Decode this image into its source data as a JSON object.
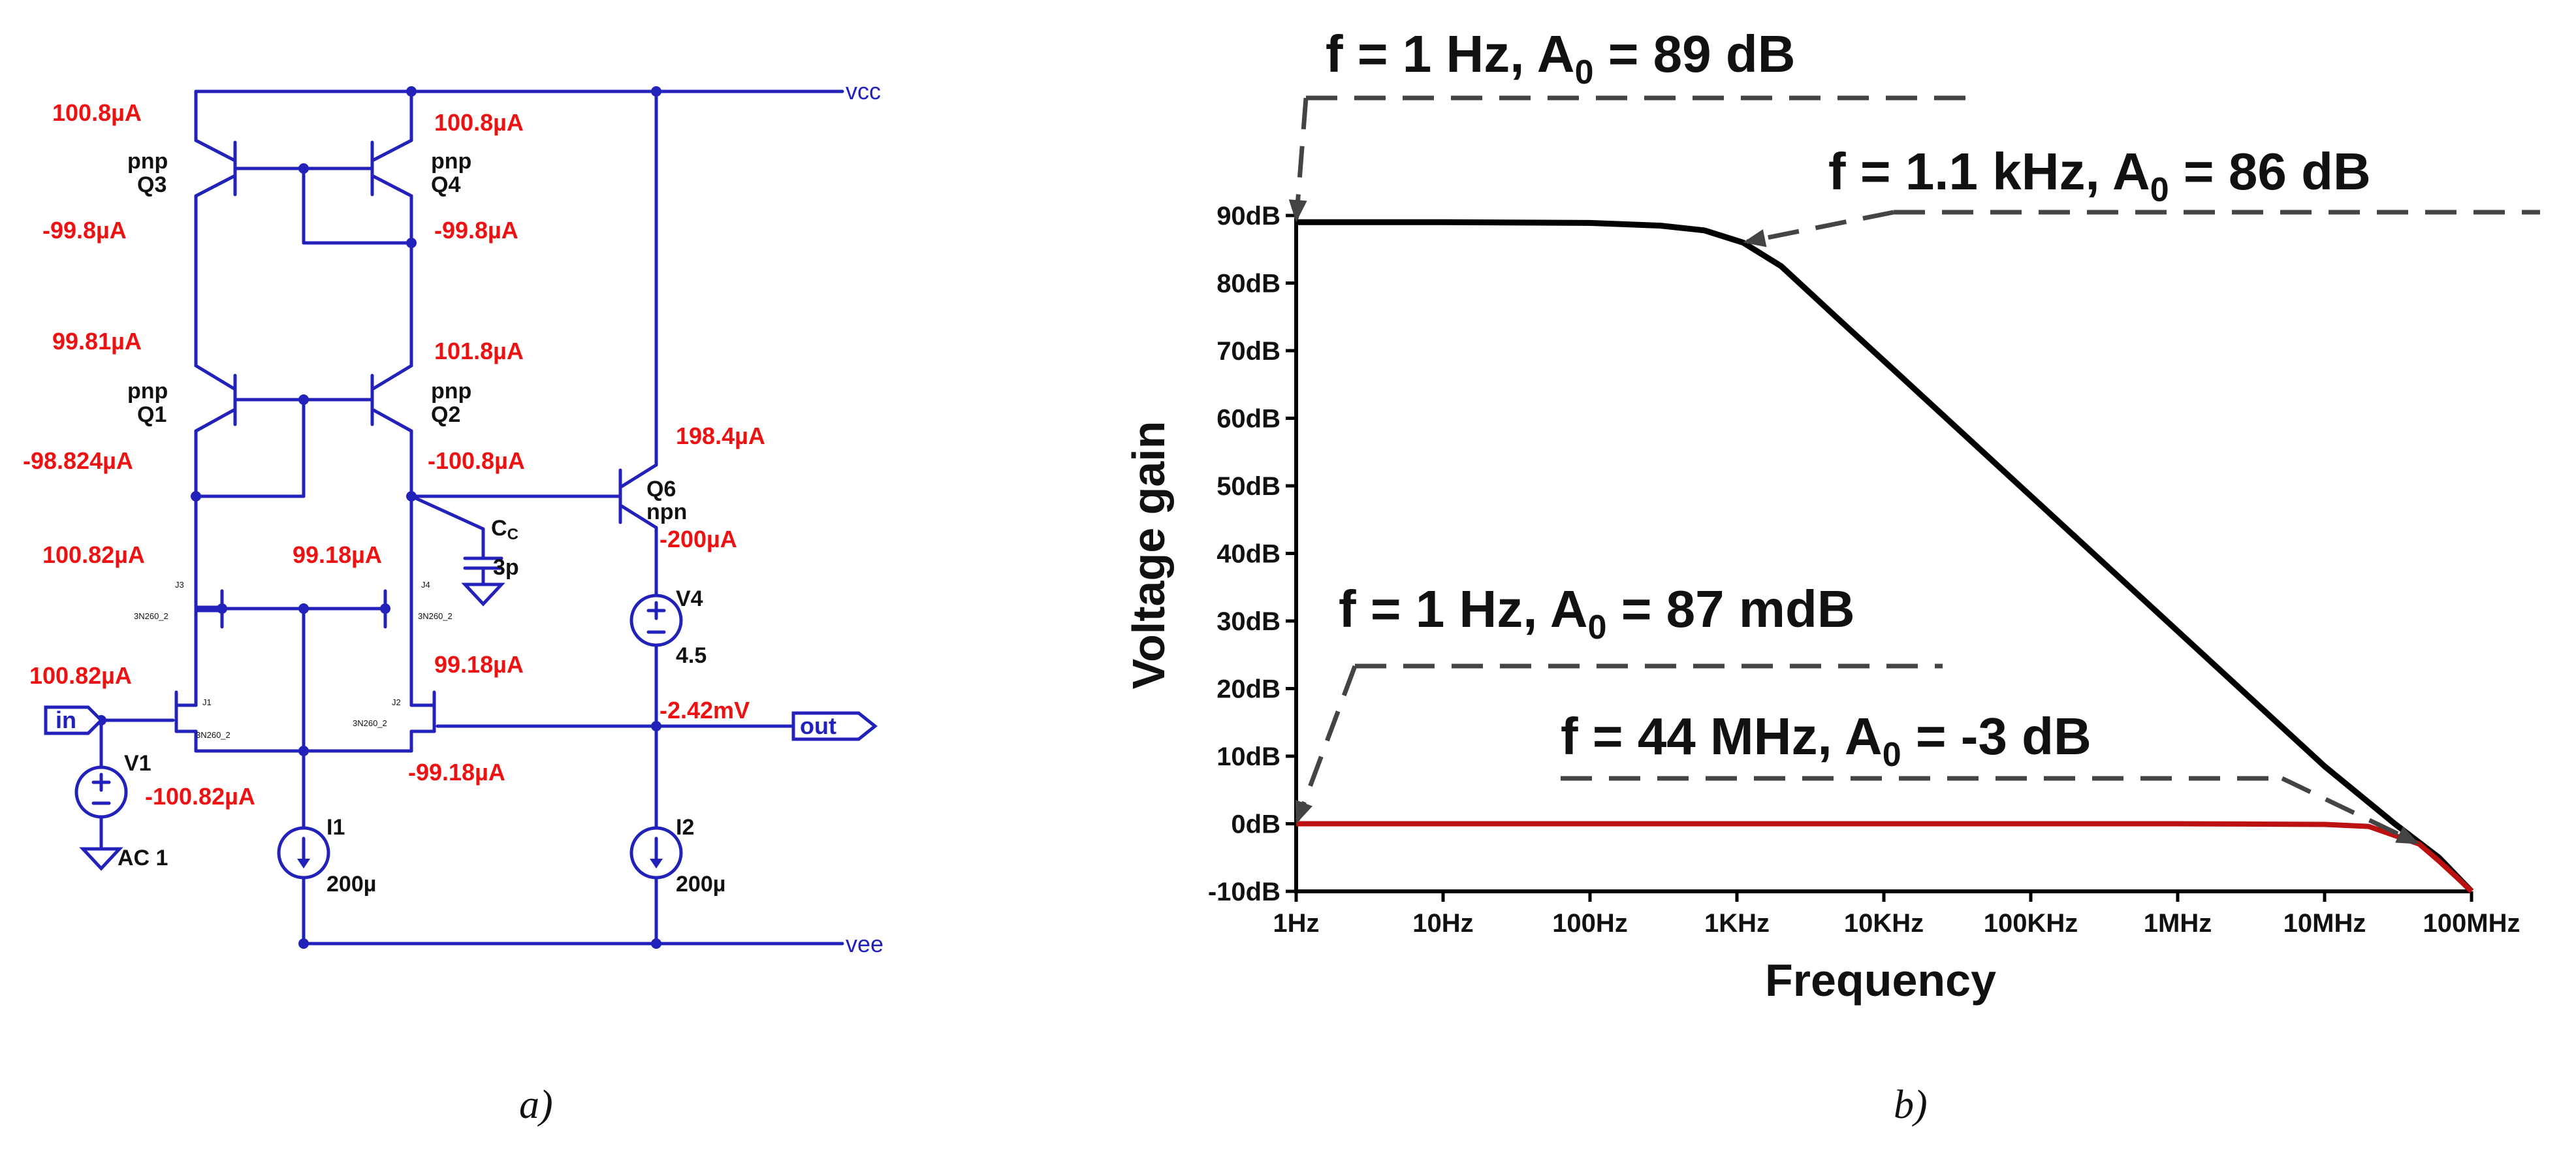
{
  "panels": [
    {
      "caption": "a)"
    },
    {
      "caption": "b)"
    }
  ],
  "schematic": {
    "nets": {
      "vcc": "vcc",
      "vee": "vee"
    },
    "ports": {
      "in": "in",
      "out": "out"
    },
    "devices": [
      {
        "name": "Q3",
        "type": "pnp"
      },
      {
        "name": "Q4",
        "type": "pnp"
      },
      {
        "name": "Q1",
        "type": "pnp"
      },
      {
        "name": "Q2",
        "type": "pnp"
      },
      {
        "name": "Q6",
        "type": "npn"
      },
      {
        "name": "J3",
        "model": "3N260_2"
      },
      {
        "name": "J4",
        "model": "3N260_2"
      },
      {
        "name": "J1",
        "model": "3N260_2"
      },
      {
        "name": "J2",
        "model": "3N260_2"
      }
    ],
    "capacitor": {
      "name": "CC",
      "name_main": "C",
      "name_sub": "C",
      "value": "3p"
    },
    "sources": [
      {
        "name": "V1",
        "value": "AC 1"
      },
      {
        "name": "V4",
        "value": "4.5"
      },
      {
        "name": "I1",
        "value": "200µ"
      },
      {
        "name": "I2",
        "value": "200µ"
      }
    ],
    "currents": {
      "q3_top": "100.8µA",
      "q4_top": "100.8µA",
      "q3_bot": "-99.8µA",
      "q4_bot": "-99.8µA",
      "q1_top": "99.81µA",
      "q2_top": "101.8µA",
      "q1_bot": "-98.824µA",
      "q2_bot": "-100.8µA",
      "q6_top": "198.4µA",
      "q6_bot": "-200µA",
      "j3_top": "100.82µA",
      "j4_top": "99.18µA",
      "j1_top": "100.82µA",
      "j2_top": "99.18µA",
      "j1_bot": "-100.82µA",
      "j2_bot": "-99.18µA",
      "out_voltage": "-2.42mV"
    }
  },
  "chart_data": {
    "type": "line",
    "title": "",
    "xlabel": "Frequency",
    "ylabel": "Voltage gain",
    "x_scale": "log",
    "xlim": [
      1,
      100000000
    ],
    "ylim": [
      -10,
      90
    ],
    "x_ticks": [
      "1Hz",
      "10Hz",
      "100Hz",
      "1KHz",
      "10KHz",
      "100KHz",
      "1MHz",
      "10MHz",
      "100MHz"
    ],
    "y_ticks": [
      "90dB",
      "80dB",
      "70dB",
      "60dB",
      "50dB",
      "40dB",
      "30dB",
      "20dB",
      "10dB",
      "0dB",
      "-10dB"
    ],
    "grid": false,
    "legend": "none",
    "series": [
      {
        "color": "#000000",
        "x": [
          1,
          10,
          100,
          300,
          600,
          1100,
          2000,
          5000,
          10000,
          100000,
          1000000,
          10000000,
          30000000,
          60000000,
          100000000
        ],
        "y": [
          89,
          89,
          88.9,
          88.5,
          87.8,
          86,
          82.5,
          74.5,
          68.5,
          48.5,
          28.5,
          8.5,
          0,
          -5,
          -10
        ]
      },
      {
        "color": "#bb1111",
        "x": [
          1,
          10,
          100,
          1000,
          100000,
          1000000,
          10000000,
          20000000,
          44000000,
          60000000,
          80000000,
          100000000
        ],
        "y": [
          0,
          0,
          0,
          0,
          0,
          0,
          -0.1,
          -0.4,
          -3,
          -5.5,
          -8,
          -10
        ]
      }
    ],
    "annotations": [
      {
        "text_main": "f = 1 Hz, A",
        "sub": "0",
        "text_tail": " = 89 dB",
        "x": 1,
        "y": 89
      },
      {
        "text_main": "f = 1.1 kHz, A",
        "sub": "0",
        "text_tail": " = 86 dB",
        "x": 1100,
        "y": 86
      },
      {
        "text_main": "f = 1 Hz, A",
        "sub": "0",
        "text_tail": " = 87 mdB",
        "x": 1,
        "y": 0
      },
      {
        "text_main": "f = 44 MHz, A",
        "sub": "0",
        "text_tail": " = -3 dB",
        "x": 44000000,
        "y": -3
      }
    ]
  }
}
